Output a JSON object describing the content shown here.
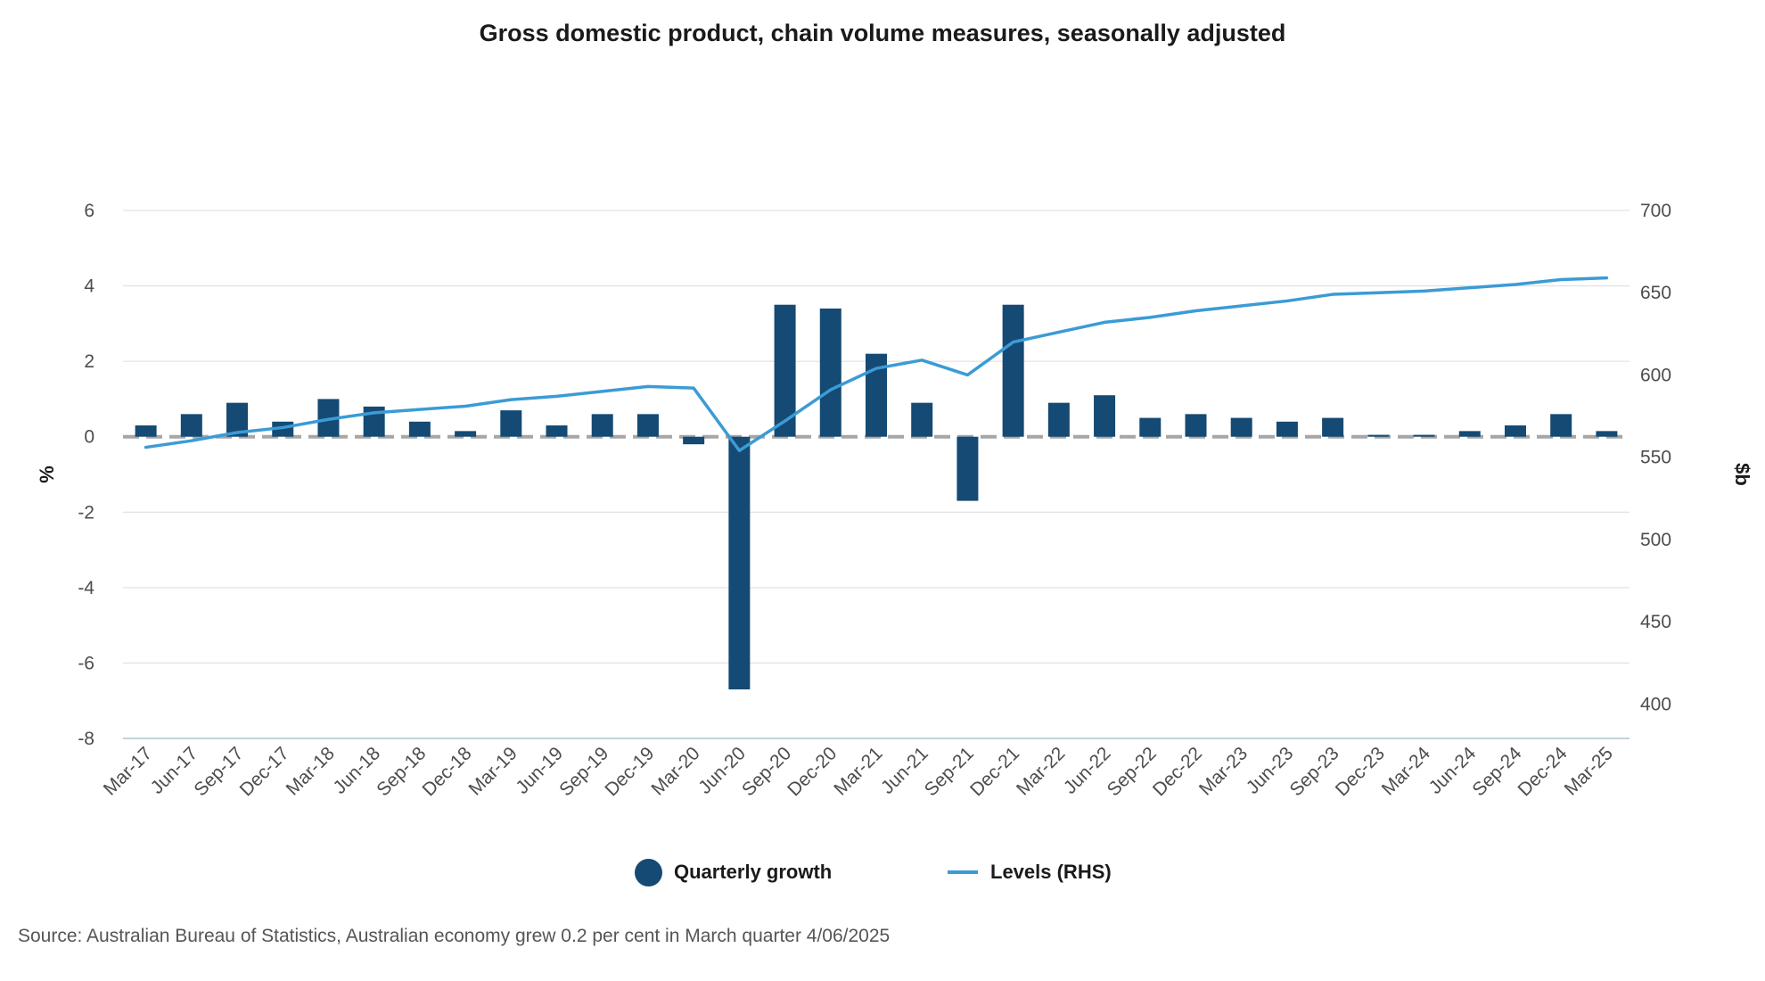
{
  "chart_data": {
    "type": "bar",
    "title": "Gross domestic product, chain volume measures, seasonally adjusted",
    "categories": [
      "Mar-17",
      "Jun-17",
      "Sep-17",
      "Dec-17",
      "Mar-18",
      "Jun-18",
      "Sep-18",
      "Dec-18",
      "Mar-19",
      "Jun-19",
      "Sep-19",
      "Dec-19",
      "Mar-20",
      "Jun-20",
      "Sep-20",
      "Dec-20",
      "Mar-21",
      "Jun-21",
      "Sep-21",
      "Dec-21",
      "Mar-22",
      "Jun-22",
      "Sep-22",
      "Dec-22",
      "Mar-23",
      "Jun-23",
      "Sep-23",
      "Dec-23",
      "Mar-24",
      "Jun-24",
      "Sep-24",
      "Dec-24",
      "Mar-25"
    ],
    "series": [
      {
        "name": "Quarterly growth",
        "type": "bar",
        "axis": "left",
        "color": "#144a73",
        "values": [
          0.3,
          0.6,
          0.9,
          0.4,
          1.0,
          0.8,
          0.4,
          0.15,
          0.7,
          0.3,
          0.6,
          0.6,
          -0.2,
          -6.7,
          3.5,
          3.4,
          2.2,
          0.9,
          -1.7,
          3.5,
          0.9,
          1.1,
          0.5,
          0.6,
          0.5,
          0.4,
          0.5,
          0.05,
          0.05,
          0.15,
          0.3,
          0.6,
          0.15
        ]
      },
      {
        "name": "Levels (RHS)",
        "type": "line",
        "axis": "right",
        "color": "#3b9bd6",
        "values": [
          556,
          560,
          565,
          568,
          573,
          577,
          579,
          581,
          585,
          587,
          590,
          593,
          592,
          554,
          572,
          591,
          604,
          609,
          600,
          620,
          626,
          632,
          635,
          639,
          642,
          645,
          649,
          650,
          651,
          653,
          655,
          658,
          659
        ]
      }
    ],
    "ylabel": "%",
    "ylim": [
      -8,
      6
    ],
    "yticks": [
      "6",
      "4",
      "2",
      "0",
      "-2",
      "-4",
      "-6",
      "-8"
    ],
    "y2label": "$b",
    "y2lim": [
      379,
      700
    ],
    "y2ticks": [
      "700",
      "650",
      "600",
      "550",
      "500",
      "450",
      "400"
    ],
    "legend_position": "bottom",
    "grid": true
  },
  "legend": {
    "bar_label": "Quarterly growth",
    "line_label": "Levels (RHS)"
  },
  "source_note": "Source: Australian Bureau of Statistics, Australian economy grew 0.2 per cent in March quarter 4/06/2025"
}
